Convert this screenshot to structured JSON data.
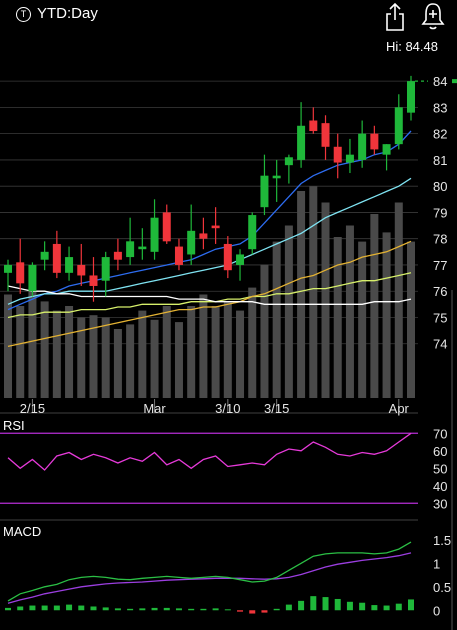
{
  "header": {
    "badge": "T",
    "title": "YTD:Day",
    "hi_label": "Hi: 84.48",
    "icons": [
      "share-icon",
      "alert-bell-icon"
    ]
  },
  "colors": {
    "up": "#1fb83a",
    "down": "#f0353b",
    "volume": "#4a4a4a",
    "sma_fast": "#2d6cf0",
    "sma_mid": "#7fe3f2",
    "sma_slow": "#d7f06b",
    "sma_yellow": "#e3b233",
    "sma_white": "#ffffff",
    "rsi": "#e63ad9",
    "rsi_band": "#b72ed6",
    "macd": "#2bbf45",
    "signal": "#9b3ee0",
    "hist_up": "#1fb83a",
    "hist_down": "#f0353b"
  },
  "chart_data": [
    {
      "type": "candlestick",
      "panel": "price",
      "x_tick_labels": [
        "2/15",
        "Mar",
        "3/10",
        "3/15",
        "Apr"
      ],
      "x_tick_index": [
        2,
        12,
        18,
        22,
        32
      ],
      "y_tick_labels": [
        "74",
        "75",
        "76",
        "77",
        "78",
        "79",
        "80",
        "81",
        "82",
        "83",
        "84"
      ],
      "ylim": [
        73.0,
        84.5
      ],
      "last_price": 84.0,
      "candles": [
        {
          "o": 76.7,
          "h": 77.2,
          "l": 76.0,
          "c": 77.0
        },
        {
          "o": 77.1,
          "h": 78.0,
          "l": 75.9,
          "c": 76.3
        },
        {
          "o": 76.0,
          "h": 77.1,
          "l": 75.8,
          "c": 77.0
        },
        {
          "o": 77.2,
          "h": 77.9,
          "l": 76.8,
          "c": 77.5
        },
        {
          "o": 77.8,
          "h": 78.3,
          "l": 76.5,
          "c": 76.7
        },
        {
          "o": 76.7,
          "h": 77.7,
          "l": 76.4,
          "c": 77.3
        },
        {
          "o": 77.0,
          "h": 77.8,
          "l": 76.2,
          "c": 76.6
        },
        {
          "o": 76.6,
          "h": 77.3,
          "l": 75.6,
          "c": 76.2
        },
        {
          "o": 76.4,
          "h": 77.5,
          "l": 75.8,
          "c": 77.3
        },
        {
          "o": 77.5,
          "h": 78.0,
          "l": 76.8,
          "c": 77.2
        },
        {
          "o": 77.3,
          "h": 78.8,
          "l": 77.0,
          "c": 77.9
        },
        {
          "o": 77.6,
          "h": 78.4,
          "l": 77.2,
          "c": 77.7
        },
        {
          "o": 77.5,
          "h": 79.5,
          "l": 77.2,
          "c": 78.8
        },
        {
          "o": 79.0,
          "h": 79.3,
          "l": 77.8,
          "c": 77.9
        },
        {
          "o": 77.7,
          "h": 78.0,
          "l": 76.8,
          "c": 77.0
        },
        {
          "o": 77.4,
          "h": 79.3,
          "l": 77.0,
          "c": 78.3
        },
        {
          "o": 78.2,
          "h": 78.8,
          "l": 77.6,
          "c": 78.0
        },
        {
          "o": 78.5,
          "h": 79.2,
          "l": 77.8,
          "c": 78.4
        },
        {
          "o": 77.8,
          "h": 78.1,
          "l": 76.5,
          "c": 76.8
        },
        {
          "o": 77.0,
          "h": 77.6,
          "l": 76.4,
          "c": 77.4
        },
        {
          "o": 77.6,
          "h": 79.0,
          "l": 77.4,
          "c": 78.9
        },
        {
          "o": 79.2,
          "h": 81.2,
          "l": 78.9,
          "c": 80.4
        },
        {
          "o": 80.3,
          "h": 81.0,
          "l": 79.4,
          "c": 80.4
        },
        {
          "o": 80.8,
          "h": 81.2,
          "l": 80.1,
          "c": 81.1
        },
        {
          "o": 81.0,
          "h": 83.2,
          "l": 80.7,
          "c": 82.3
        },
        {
          "o": 82.5,
          "h": 83.0,
          "l": 82.0,
          "c": 82.1
        },
        {
          "o": 82.4,
          "h": 82.7,
          "l": 81.0,
          "c": 81.5
        },
        {
          "o": 81.5,
          "h": 82.0,
          "l": 80.3,
          "c": 80.9
        },
        {
          "o": 80.9,
          "h": 81.8,
          "l": 80.5,
          "c": 81.2
        },
        {
          "o": 81.0,
          "h": 82.5,
          "l": 80.7,
          "c": 82.0
        },
        {
          "o": 82.0,
          "h": 82.3,
          "l": 81.2,
          "c": 81.4
        },
        {
          "o": 81.2,
          "h": 81.6,
          "l": 80.6,
          "c": 81.6
        },
        {
          "o": 81.6,
          "h": 83.5,
          "l": 81.4,
          "c": 83.0
        },
        {
          "o": 82.8,
          "h": 84.2,
          "l": 82.5,
          "c": 84.0
        }
      ],
      "volume_relative": [
        0.45,
        0.4,
        0.48,
        0.42,
        0.38,
        0.4,
        0.35,
        0.36,
        0.35,
        0.3,
        0.32,
        0.38,
        0.34,
        0.4,
        0.33,
        0.4,
        0.45,
        0.4,
        0.42,
        0.38,
        0.48,
        0.58,
        0.68,
        0.75,
        0.9,
        0.92,
        0.85,
        0.7,
        0.75,
        0.68,
        0.8,
        0.72,
        0.85,
        0.68
      ],
      "moving_averages": [
        {
          "color": "sma_fast",
          "values": [
            75.3,
            75.5,
            75.7,
            75.9,
            76.0,
            76.2,
            76.3,
            76.4,
            76.5,
            76.6,
            76.7,
            76.8,
            76.9,
            77.0,
            77.1,
            77.2,
            77.4,
            77.6,
            77.7,
            77.8,
            78.1,
            78.6,
            79.1,
            79.6,
            80.1,
            80.4,
            80.6,
            80.8,
            80.9,
            81.0,
            81.2,
            81.3,
            81.6,
            82.1
          ]
        },
        {
          "color": "sma_mid",
          "values": [
            75.5,
            75.7,
            75.8,
            75.9,
            75.9,
            76.0,
            76.0,
            76.0,
            76.0,
            76.1,
            76.2,
            76.3,
            76.4,
            76.5,
            76.6,
            76.7,
            76.8,
            76.9,
            77.0,
            77.2,
            77.4,
            77.6,
            77.8,
            78.0,
            78.2,
            78.5,
            78.8,
            79.0,
            79.2,
            79.4,
            79.6,
            79.8,
            80.0,
            80.3
          ]
        },
        {
          "color": "sma_slow",
          "values": [
            75.0,
            75.1,
            75.1,
            75.2,
            75.2,
            75.2,
            75.3,
            75.3,
            75.3,
            75.4,
            75.4,
            75.5,
            75.5,
            75.5,
            75.5,
            75.6,
            75.6,
            75.6,
            75.7,
            75.7,
            75.8,
            75.8,
            75.9,
            75.9,
            76.0,
            76.1,
            76.1,
            76.2,
            76.3,
            76.4,
            76.4,
            76.5,
            76.6,
            76.7
          ]
        },
        {
          "color": "sma_yellow",
          "values": [
            73.9,
            74.0,
            74.1,
            74.2,
            74.3,
            74.4,
            74.5,
            74.6,
            74.7,
            74.8,
            74.9,
            75.0,
            75.1,
            75.2,
            75.3,
            75.3,
            75.4,
            75.4,
            75.5,
            75.6,
            75.8,
            75.9,
            76.1,
            76.3,
            76.5,
            76.6,
            76.8,
            77.0,
            77.1,
            77.3,
            77.4,
            77.5,
            77.7,
            77.9
          ]
        },
        {
          "color": "sma_white",
          "values": [
            76.2,
            76.1,
            76.0,
            76.0,
            75.9,
            75.9,
            75.8,
            75.8,
            75.8,
            75.8,
            75.8,
            75.8,
            75.8,
            75.8,
            75.7,
            75.7,
            75.7,
            75.6,
            75.6,
            75.6,
            75.6,
            75.5,
            75.5,
            75.5,
            75.5,
            75.5,
            75.5,
            75.5,
            75.5,
            75.5,
            75.6,
            75.6,
            75.6,
            75.7
          ]
        }
      ]
    },
    {
      "type": "line",
      "panel": "rsi",
      "title": "RSI",
      "y_tick_labels": [
        "30",
        "40",
        "50",
        "60",
        "70"
      ],
      "ylim": [
        25,
        73
      ],
      "bands": [
        70,
        30
      ],
      "values": [
        56,
        50,
        55,
        49,
        57,
        59,
        55,
        58,
        56,
        53,
        56,
        54,
        59,
        52,
        55,
        50,
        55,
        57,
        51,
        52,
        53,
        52,
        58,
        61,
        60,
        65,
        62,
        58,
        57,
        59,
        58,
        60,
        65,
        70
      ]
    },
    {
      "type": "line",
      "panel": "macd",
      "title": "MACD",
      "y_tick_labels": [
        "0",
        "0.5",
        "1",
        "1.5"
      ],
      "ylim": [
        -0.25,
        1.75
      ],
      "macd": [
        0.2,
        0.35,
        0.42,
        0.5,
        0.55,
        0.65,
        0.7,
        0.72,
        0.7,
        0.66,
        0.65,
        0.68,
        0.7,
        0.72,
        0.7,
        0.68,
        0.7,
        0.72,
        0.7,
        0.65,
        0.6,
        0.62,
        0.7,
        0.85,
        1.0,
        1.15,
        1.2,
        1.22,
        1.22,
        1.22,
        1.2,
        1.22,
        1.3,
        1.45
      ],
      "signal": [
        0.15,
        0.22,
        0.28,
        0.35,
        0.4,
        0.45,
        0.5,
        0.53,
        0.56,
        0.58,
        0.59,
        0.6,
        0.62,
        0.64,
        0.65,
        0.66,
        0.67,
        0.68,
        0.68,
        0.68,
        0.67,
        0.66,
        0.67,
        0.7,
        0.76,
        0.84,
        0.92,
        0.98,
        1.02,
        1.06,
        1.09,
        1.12,
        1.16,
        1.22
      ],
      "histogram": [
        0.05,
        0.08,
        0.1,
        0.1,
        0.1,
        0.12,
        0.1,
        0.08,
        0.06,
        0.04,
        0.03,
        0.04,
        0.05,
        0.05,
        0.04,
        0.03,
        0.03,
        0.04,
        0.02,
        -0.03,
        -0.07,
        -0.05,
        0.03,
        0.12,
        0.2,
        0.3,
        0.28,
        0.24,
        0.18,
        0.16,
        0.11,
        0.1,
        0.14,
        0.23
      ]
    }
  ]
}
